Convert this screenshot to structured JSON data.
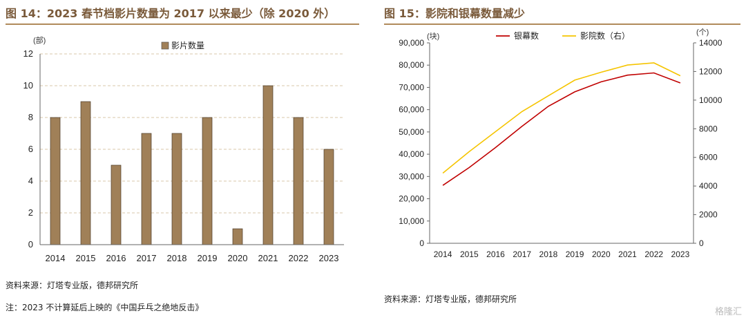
{
  "left": {
    "title": "图 14：2023 春节档影片数量为 2017 以来最少（除 2020 外）",
    "source": "资料来源：灯塔专业版，德邦研究所",
    "note": "注：2023 不计算延后上映的《中国乒乓之绝地反击》",
    "chart_data": {
      "type": "bar",
      "unit_label": "(部)",
      "legend": "影片数量",
      "categories": [
        "2014",
        "2015",
        "2016",
        "2017",
        "2018",
        "2019",
        "2020",
        "2021",
        "2022",
        "2023"
      ],
      "values": [
        8,
        9,
        5,
        7,
        7,
        8,
        1,
        10,
        8,
        6
      ],
      "ylim": [
        0,
        12
      ],
      "yticks": [
        "0",
        "2",
        "4",
        "6",
        "8",
        "10",
        "12"
      ],
      "bar_color": "#a08058",
      "grid": true
    }
  },
  "right": {
    "title": "图 15：影院和银幕数量减少",
    "source": "资料来源：灯塔专业版，德邦研究所",
    "chart_data": {
      "type": "line",
      "left_unit": "(块)",
      "right_unit": "(个)",
      "categories": [
        "2014",
        "2015",
        "2016",
        "2017",
        "2018",
        "2019",
        "2020",
        "2021",
        "2022",
        "2023"
      ],
      "series": [
        {
          "name": "银幕数",
          "axis": "left",
          "color": "#c00000",
          "values": [
            26000,
            34000,
            43000,
            52500,
            61500,
            68000,
            72500,
            75500,
            76500,
            72000
          ]
        },
        {
          "name": "影院数（右）",
          "axis": "right",
          "color": "#f5c400",
          "values": [
            4900,
            6400,
            7800,
            9200,
            10300,
            11400,
            11950,
            12450,
            12600,
            11700
          ]
        }
      ],
      "ylim_left": [
        0,
        90000
      ],
      "yticks_left": [
        "0",
        "10,000",
        "20,000",
        "30,000",
        "40,000",
        "50,000",
        "60,000",
        "70,000",
        "80,000",
        "90,000"
      ],
      "ylim_right": [
        0,
        14000
      ],
      "yticks_right": [
        "0",
        "2000",
        "4000",
        "6000",
        "8000",
        "10000",
        "12000",
        "14000"
      ],
      "legend_position": "top"
    }
  },
  "watermark": "格隆汇"
}
